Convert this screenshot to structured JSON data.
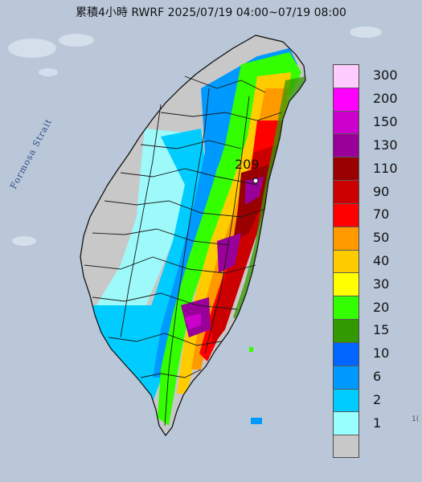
{
  "map": {
    "title": "累積4小時 RWRF 2025/07/19 04:00~07/19 08:00",
    "sea_label": "Formosa Strait",
    "max_value_label": "209",
    "edge_tick_text": "1("
  },
  "legend": {
    "levels": [
      {
        "label": "300",
        "color": "#ffccff"
      },
      {
        "label": "200",
        "color": "#ff00ff"
      },
      {
        "label": "150",
        "color": "#cc00cc"
      },
      {
        "label": "130",
        "color": "#990099"
      },
      {
        "label": "110",
        "color": "#990000"
      },
      {
        "label": "90",
        "color": "#cc0000"
      },
      {
        "label": "70",
        "color": "#ff0000"
      },
      {
        "label": "50",
        "color": "#ff9900"
      },
      {
        "label": "40",
        "color": "#ffcc00"
      },
      {
        "label": "30",
        "color": "#ffff00"
      },
      {
        "label": "20",
        "color": "#33ff00"
      },
      {
        "label": "15",
        "color": "#339900"
      },
      {
        "label": "10",
        "color": "#0066ff"
      },
      {
        "label": "6",
        "color": "#0099ff"
      },
      {
        "label": "2",
        "color": "#00ccff"
      },
      {
        "label": "1",
        "color": "#99ffff"
      },
      {
        "label": "",
        "color": "#c8c8c8"
      }
    ]
  },
  "colors": {
    "sea": "#b9c7d9",
    "land_dry": "#c8c8c8",
    "border": "#222222"
  }
}
